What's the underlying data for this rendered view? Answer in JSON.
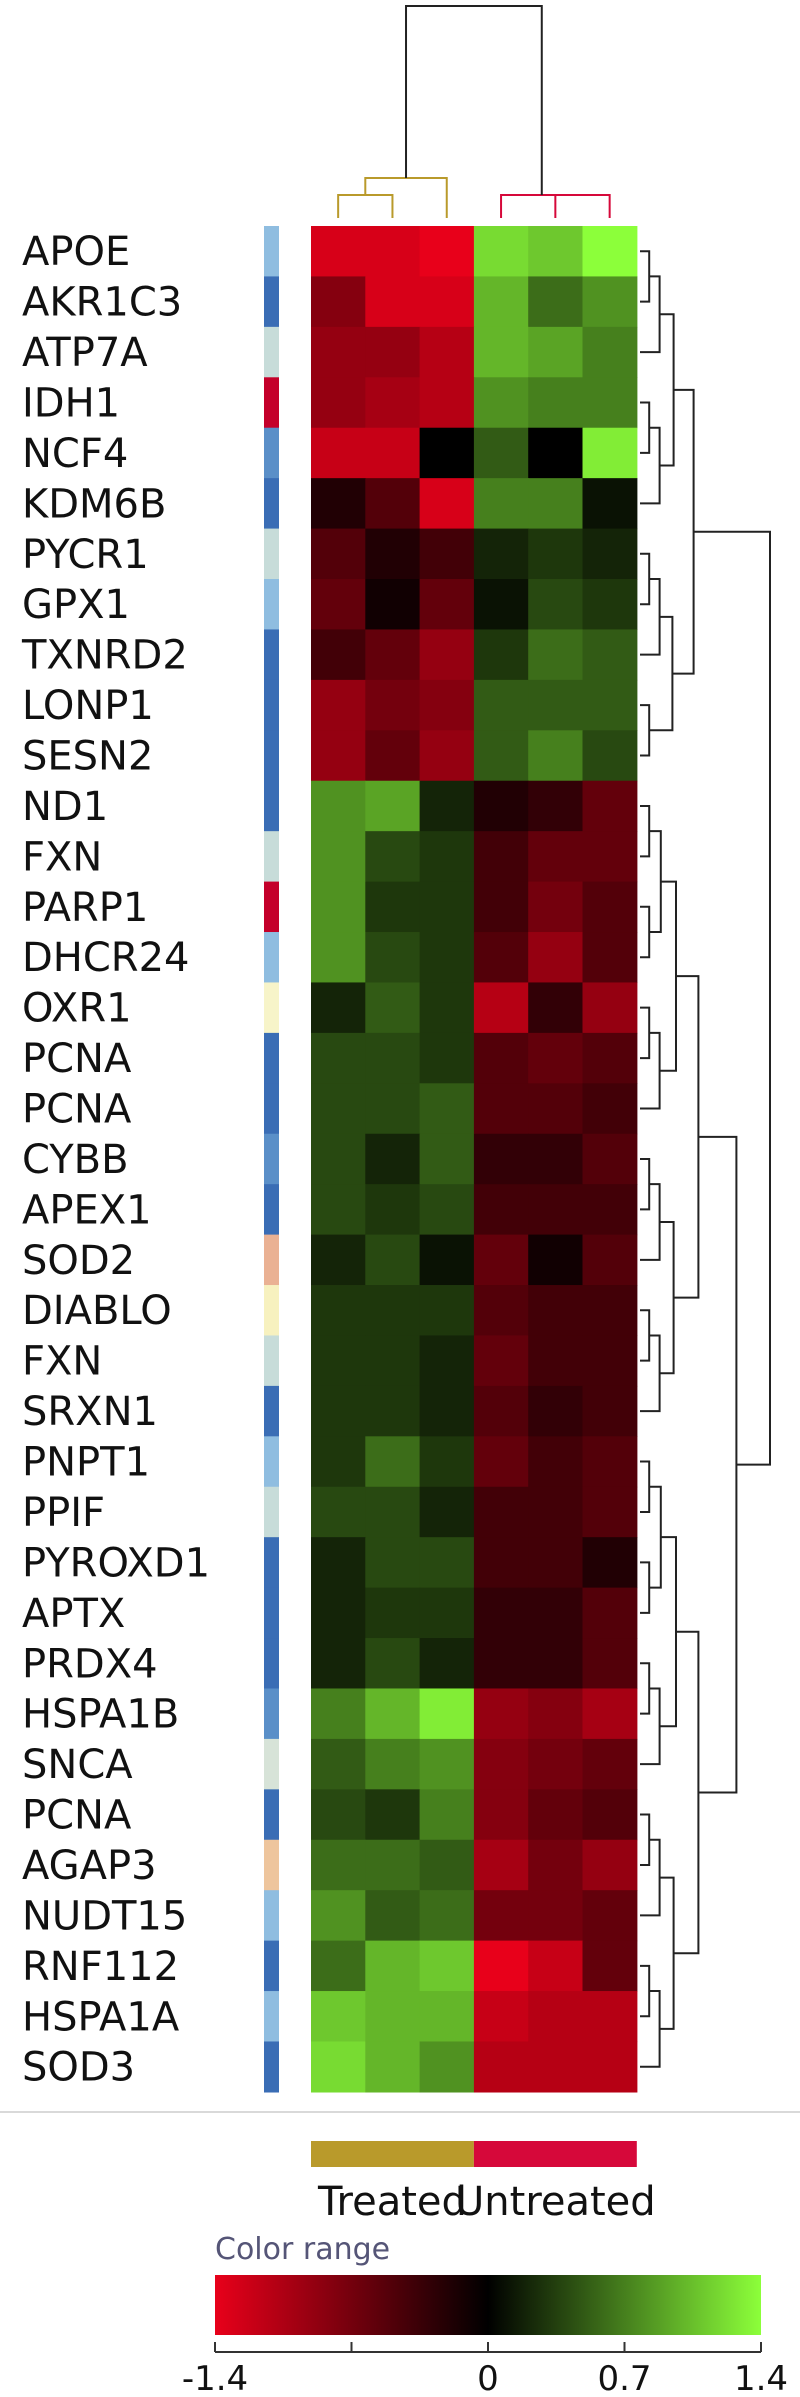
{
  "chart_data": {
    "type": "heatmap",
    "rows": [
      "APOE",
      "AKR1C3",
      "ATP7A",
      "IDH1",
      "NCF4",
      "KDM6B",
      "PYCR1",
      "GPX1",
      "TXNRD2",
      "LONP1",
      "SESN2",
      "ND1",
      "FXN",
      "PARP1",
      "DHCR24",
      "OXR1",
      "PCNA",
      "PCNA",
      "CYBB",
      "APEX1",
      "SOD2",
      "DIABLO",
      "FXN",
      "SRXN1",
      "PNPT1",
      "PPIF",
      "PYROXD1",
      "APTX",
      "PRDX4",
      "HSPA1B",
      "SNCA",
      "PCNA",
      "AGAP3",
      "NUDT15",
      "RNF112",
      "HSPA1A",
      "SOD3"
    ],
    "row_annotation_colors": [
      "#8fbde0",
      "#3a6db5",
      "#c7dcd9",
      "#c4002a",
      "#5a8fc8",
      "#3a6db5",
      "#c7dcd9",
      "#8fbde0",
      "#3a6db5",
      "#3a6db5",
      "#3a6db5",
      "#3a6db5",
      "#c7dcd9",
      "#c4002a",
      "#8fbde0",
      "#f7f4c9",
      "#3a6db5",
      "#3a6db5",
      "#5a8fc8",
      "#3a6db5",
      "#eab193",
      "#f7f1bf",
      "#c7dcd9",
      "#3a6db5",
      "#8fbde0",
      "#c7dcd9",
      "#3a6db5",
      "#3a6db5",
      "#3a6db5",
      "#5a8fc8",
      "#d7e3d8",
      "#3a6db5",
      "#eec59d",
      "#8fbde0",
      "#3a6db5",
      "#8fbde0",
      "#3a6db5"
    ],
    "groups": [
      {
        "name": "Treated",
        "color": "#b99a2b",
        "columns": 3
      },
      {
        "name": "Untreated",
        "color": "#d6083a",
        "columns": 3
      }
    ],
    "values": [
      [
        -1.3,
        -1.3,
        -1.5,
        1.2,
        1.1,
        1.4
      ],
      [
        -0.8,
        -1.3,
        -1.3,
        1.0,
        0.6,
        0.8
      ],
      [
        -0.9,
        -0.9,
        -1.1,
        1.0,
        0.9,
        0.7
      ],
      [
        -0.9,
        -1.0,
        -1.1,
        0.8,
        0.7,
        0.7
      ],
      [
        -1.2,
        -1.2,
        0.0,
        0.5,
        0.0,
        1.3
      ],
      [
        -0.2,
        -0.5,
        -1.3,
        0.7,
        0.7,
        0.1
      ],
      [
        -0.5,
        -0.2,
        -0.4,
        0.2,
        0.3,
        0.2
      ],
      [
        -0.6,
        -0.1,
        -0.6,
        0.1,
        0.4,
        0.3
      ],
      [
        -0.4,
        -0.6,
        -0.9,
        0.3,
        0.6,
        0.5
      ],
      [
        -0.9,
        -0.7,
        -0.8,
        0.5,
        0.5,
        0.5
      ],
      [
        -0.9,
        -0.6,
        -0.9,
        0.5,
        0.7,
        0.4
      ],
      [
        0.8,
        0.9,
        0.2,
        -0.2,
        -0.3,
        -0.6
      ],
      [
        0.8,
        0.4,
        0.3,
        -0.4,
        -0.6,
        -0.6
      ],
      [
        0.8,
        0.3,
        0.3,
        -0.4,
        -0.7,
        -0.5
      ],
      [
        0.8,
        0.4,
        0.3,
        -0.5,
        -0.9,
        -0.5
      ],
      [
        0.2,
        0.5,
        0.3,
        -1.1,
        -0.3,
        -0.9
      ],
      [
        0.4,
        0.4,
        0.3,
        -0.5,
        -0.6,
        -0.5
      ],
      [
        0.4,
        0.4,
        0.5,
        -0.5,
        -0.5,
        -0.4
      ],
      [
        0.4,
        0.2,
        0.5,
        -0.3,
        -0.3,
        -0.5
      ],
      [
        0.4,
        0.3,
        0.4,
        -0.4,
        -0.4,
        -0.4
      ],
      [
        0.2,
        0.4,
        0.1,
        -0.6,
        -0.1,
        -0.5
      ],
      [
        0.3,
        0.3,
        0.3,
        -0.5,
        -0.4,
        -0.4
      ],
      [
        0.3,
        0.3,
        0.2,
        -0.6,
        -0.4,
        -0.4
      ],
      [
        0.3,
        0.3,
        0.2,
        -0.5,
        -0.3,
        -0.4
      ],
      [
        0.3,
        0.6,
        0.3,
        -0.6,
        -0.4,
        -0.5
      ],
      [
        0.4,
        0.4,
        0.2,
        -0.4,
        -0.4,
        -0.5
      ],
      [
        0.2,
        0.4,
        0.4,
        -0.4,
        -0.4,
        -0.2
      ],
      [
        0.2,
        0.3,
        0.3,
        -0.3,
        -0.3,
        -0.5
      ],
      [
        0.2,
        0.4,
        0.2,
        -0.3,
        -0.3,
        -0.5
      ],
      [
        0.7,
        1.0,
        1.3,
        -0.9,
        -0.8,
        -1.0
      ],
      [
        0.5,
        0.7,
        0.8,
        -0.8,
        -0.7,
        -0.6
      ],
      [
        0.4,
        0.3,
        0.7,
        -0.8,
        -0.6,
        -0.5
      ],
      [
        0.6,
        0.6,
        0.5,
        -1.0,
        -0.7,
        -0.9
      ],
      [
        0.8,
        0.5,
        0.6,
        -0.7,
        -0.7,
        -0.6
      ],
      [
        0.6,
        1.0,
        1.1,
        -1.4,
        -1.2,
        -0.6
      ],
      [
        1.1,
        1.0,
        1.0,
        -1.2,
        -1.1,
        -1.1
      ],
      [
        1.2,
        1.0,
        0.8,
        -1.1,
        -1.1,
        -1.1
      ]
    ],
    "color_range": {
      "title": "Color range",
      "min": -1.4,
      "max": 1.4,
      "low_color": "#e8001a",
      "mid_color": "#000000",
      "high_color": "#8cff3a",
      "tick_labels": [
        "-1.4",
        "0",
        "0.7",
        "1.4"
      ],
      "tick_values": [
        -1.4,
        0,
        0.7,
        1.4
      ]
    }
  }
}
